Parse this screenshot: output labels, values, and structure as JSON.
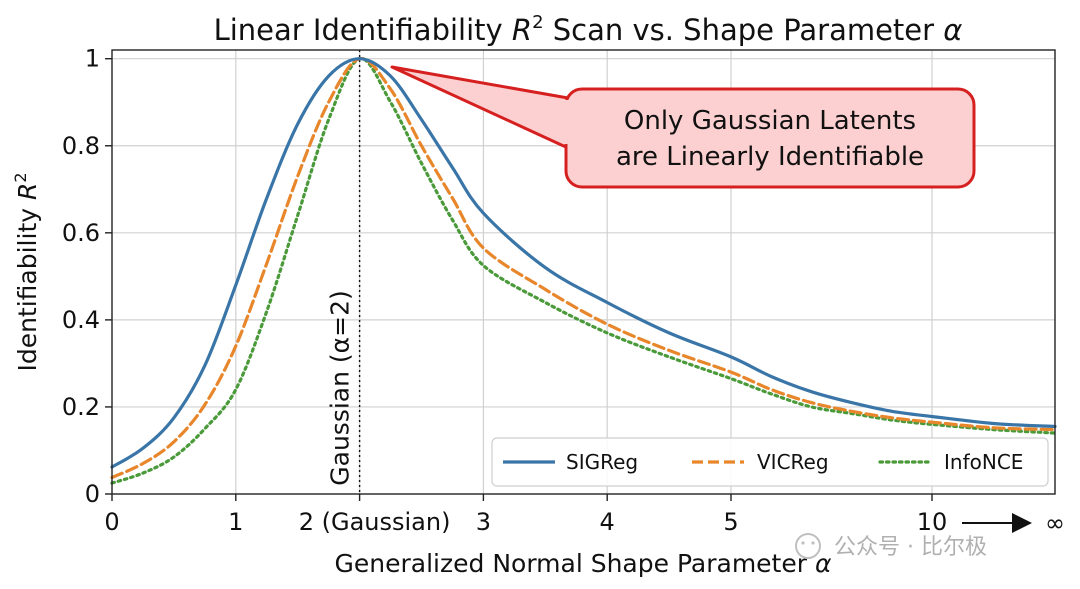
{
  "chart_data": {
    "type": "line",
    "title_parts": [
      "Linear Identifiability ",
      "R",
      "2",
      " Scan vs. Shape Parameter ",
      "α"
    ],
    "xlabel_parts": [
      "Generalized Normal Shape Parameter ",
      "α"
    ],
    "ylabel_parts": [
      "Identifiability ",
      "R",
      "2"
    ],
    "ylim": [
      0,
      1.02
    ],
    "yticks": [
      {
        "value": 0,
        "label": "0"
      },
      {
        "value": 0.2,
        "label": "0.2"
      },
      {
        "value": 0.4,
        "label": "0.4"
      },
      {
        "value": 0.6,
        "label": "0.6"
      },
      {
        "value": 0.8,
        "label": "0.8"
      },
      {
        "value": 1.0,
        "label": "1"
      }
    ],
    "xticks": [
      {
        "value": 0,
        "label": "0"
      },
      {
        "value": 1,
        "label": "1"
      },
      {
        "value": 2,
        "label": "2 (Gaussian)"
      },
      {
        "value": 3,
        "label": "3"
      },
      {
        "value": 4,
        "label": "4"
      },
      {
        "value": 5,
        "label": "5"
      },
      {
        "value": 10,
        "label": "10"
      }
    ],
    "infinity_label": "∞",
    "grid": true,
    "legend_position": "lower-right",
    "vertical_line": {
      "x": 2,
      "label": "Gaussian (α=2)"
    },
    "annotation": {
      "lines": [
        "Only Gaussian Latents",
        "are Linearly Identifiable"
      ],
      "points_to": {
        "x": 2,
        "y": 1.0
      }
    },
    "series": [
      {
        "name": "SIGReg",
        "color": "#3a75a8",
        "style": "solid",
        "points": [
          [
            0,
            0.062
          ],
          [
            0.25,
            0.105
          ],
          [
            0.5,
            0.175
          ],
          [
            0.75,
            0.295
          ],
          [
            1,
            0.48
          ],
          [
            1.25,
            0.68
          ],
          [
            1.5,
            0.85
          ],
          [
            1.75,
            0.96
          ],
          [
            2,
            1.0
          ],
          [
            2.25,
            0.96
          ],
          [
            2.5,
            0.86
          ],
          [
            2.75,
            0.75
          ],
          [
            3,
            0.645
          ],
          [
            3.5,
            0.52
          ],
          [
            4,
            0.44
          ],
          [
            4.5,
            0.37
          ],
          [
            5,
            0.315
          ],
          [
            6,
            0.27
          ],
          [
            7,
            0.235
          ],
          [
            8,
            0.21
          ],
          [
            9,
            0.19
          ],
          [
            10,
            0.178
          ],
          [
            12.5,
            0.162
          ],
          [
            15,
            0.155
          ]
        ]
      },
      {
        "name": "VICReg",
        "color": "#e8862b",
        "style": "dashed",
        "points": [
          [
            0,
            0.038
          ],
          [
            0.25,
            0.07
          ],
          [
            0.5,
            0.12
          ],
          [
            0.75,
            0.205
          ],
          [
            1,
            0.34
          ],
          [
            1.25,
            0.53
          ],
          [
            1.5,
            0.73
          ],
          [
            1.75,
            0.9
          ],
          [
            2,
            1.0
          ],
          [
            2.25,
            0.93
          ],
          [
            2.5,
            0.8
          ],
          [
            2.75,
            0.68
          ],
          [
            3,
            0.565
          ],
          [
            3.5,
            0.47
          ],
          [
            4,
            0.39
          ],
          [
            4.5,
            0.33
          ],
          [
            5,
            0.28
          ],
          [
            6,
            0.24
          ],
          [
            7,
            0.21
          ],
          [
            8,
            0.19
          ],
          [
            9,
            0.175
          ],
          [
            10,
            0.165
          ],
          [
            12.5,
            0.152
          ],
          [
            15,
            0.148
          ]
        ]
      },
      {
        "name": "InfoNCE",
        "color": "#4a9a3a",
        "style": "dotted",
        "points": [
          [
            0,
            0.025
          ],
          [
            0.25,
            0.048
          ],
          [
            0.5,
            0.085
          ],
          [
            0.75,
            0.15
          ],
          [
            1,
            0.24
          ],
          [
            1.25,
            0.42
          ],
          [
            1.5,
            0.64
          ],
          [
            1.75,
            0.86
          ],
          [
            2,
            1.0
          ],
          [
            2.25,
            0.9
          ],
          [
            2.5,
            0.76
          ],
          [
            2.75,
            0.63
          ],
          [
            3,
            0.525
          ],
          [
            3.5,
            0.44
          ],
          [
            4,
            0.37
          ],
          [
            4.5,
            0.315
          ],
          [
            5,
            0.265
          ],
          [
            6,
            0.23
          ],
          [
            7,
            0.2
          ],
          [
            8,
            0.185
          ],
          [
            9,
            0.17
          ],
          [
            10,
            0.16
          ],
          [
            12.5,
            0.148
          ],
          [
            15,
            0.14
          ]
        ]
      }
    ]
  },
  "watermark": "公众号 · 比尔极"
}
